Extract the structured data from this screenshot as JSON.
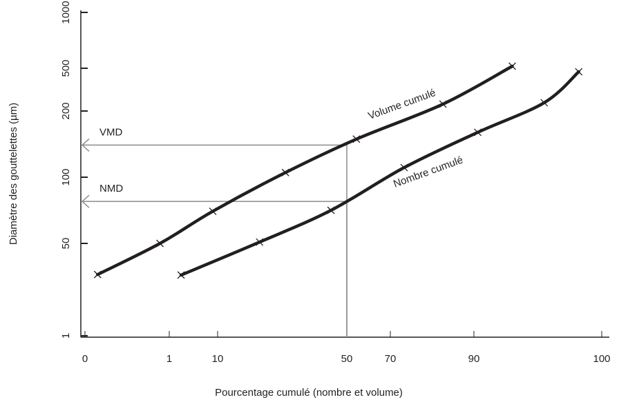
{
  "chart_data": {
    "type": "line",
    "xlabel": "Pourcentage cumulé (nombre et volume)",
    "ylabel": "Diamètre des gouttelettes (µm)",
    "xlim": [
      0,
      100
    ],
    "xticks": [
      0,
      1,
      10,
      50,
      70,
      90,
      100
    ],
    "ylim": [
      1,
      1000
    ],
    "yticks": [
      1,
      50,
      100,
      200,
      500,
      1000
    ],
    "log_y": true,
    "series": [
      {
        "name": "Volume cumulé",
        "color": "#231f20",
        "x": [
          0.15,
          0.89,
          9.1,
          31,
          54.4,
          82.6,
          93
        ],
        "values": [
          13.4,
          50,
          70,
          105,
          149,
          232,
          513
        ]
      },
      {
        "name": "Nombre cumulé",
        "color": "#231f20",
        "x": [
          3.2,
          23,
          45.1,
          73.3,
          90.3,
          95.5,
          98.2
        ],
        "values": [
          13.1,
          50.7,
          70.7,
          110.6,
          160,
          239,
          464
        ]
      }
    ],
    "annotations": [
      {
        "label": "VMD",
        "x": 50,
        "value": 140,
        "color": "#8c8c8c"
      },
      {
        "label": "NMD",
        "x": 50,
        "value": 77.6,
        "color": "#8c8c8c"
      }
    ]
  }
}
